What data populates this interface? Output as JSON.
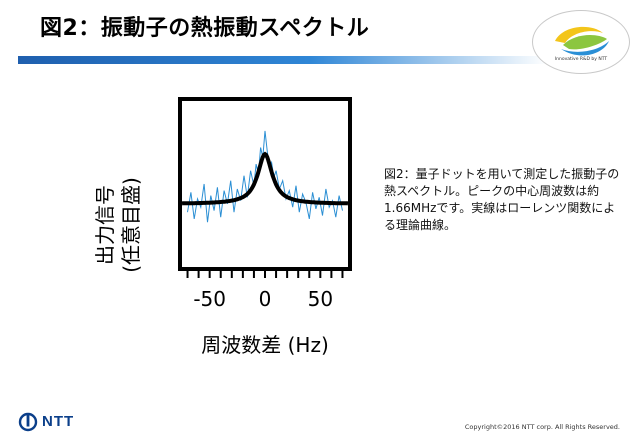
{
  "slide": {
    "title": "図2：振動子の熱振動スペクトル",
    "caption": "図2：量子ドットを用いて測定した振動子の熱スペクトル。ピークの中心周波数は約1.66MHzです。実線はローレンツ関数による理論曲線。",
    "copyright": "Copyright©2016 NTT corp. All Rights Reserved.",
    "logo_tagline": "Innovative R&D by NTT",
    "footer_brand": "NTT"
  },
  "colors": {
    "title_bar": "#1f5fae",
    "noise": "#2b8fd4",
    "fit": "#000000",
    "brand_blue": "#0b3f8a"
  },
  "chart_data": {
    "type": "line",
    "xlabel": "周波数差 (Hz)",
    "ylabel_line1": "出力信号",
    "ylabel_line2": "(任意目盛)",
    "xlim": [
      -75,
      75
    ],
    "ylim": [
      0,
      1
    ],
    "xticks": [
      -50,
      0,
      50
    ],
    "xtick_labels": [
      "-50",
      "0",
      "50"
    ],
    "grid": false,
    "legend": "none",
    "series": [
      {
        "kind": "measured-noise",
        "x": [
          -70,
          -67,
          -64,
          -61,
          -58,
          -55,
          -52,
          -49,
          -46,
          -43,
          -40,
          -37,
          -34,
          -31,
          -28,
          -25,
          -22,
          -19,
          -16,
          -13,
          -10,
          -8,
          -6,
          -4,
          -2,
          0,
          2,
          4,
          6,
          8,
          10,
          13,
          16,
          19,
          22,
          25,
          28,
          31,
          34,
          37,
          40,
          43,
          46,
          49,
          52,
          55,
          58,
          61,
          64,
          67,
          70
        ],
        "y": [
          0.33,
          0.45,
          0.29,
          0.41,
          0.36,
          0.5,
          0.27,
          0.43,
          0.34,
          0.48,
          0.3,
          0.46,
          0.38,
          0.52,
          0.33,
          0.47,
          0.4,
          0.55,
          0.42,
          0.58,
          0.49,
          0.62,
          0.56,
          0.72,
          0.66,
          0.82,
          0.7,
          0.6,
          0.63,
          0.54,
          0.58,
          0.47,
          0.52,
          0.41,
          0.46,
          0.36,
          0.49,
          0.33,
          0.44,
          0.39,
          0.29,
          0.45,
          0.35,
          0.42,
          0.31,
          0.47,
          0.36,
          0.4,
          0.3,
          0.43,
          0.34
        ]
      },
      {
        "kind": "lorentzian-fit",
        "baseline": 0.38,
        "amplitude": 0.3,
        "center": 0,
        "half_width": 8
      }
    ]
  }
}
